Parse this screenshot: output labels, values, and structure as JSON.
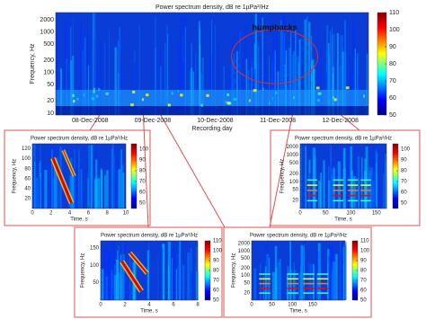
{
  "chart_data": [
    {
      "type": "heatmap",
      "title": "Power spectrum density, dB re 1µPa²/Hz",
      "xlabel": "Recording day",
      "ylabel": "Frequency, Hz",
      "categories": [
        "08-Dec-2008",
        "09-Dec-2008",
        "10-Dec-2008",
        "11-Dec-2008",
        "12-Dec-2008"
      ],
      "ylim": [
        9,
        3000
      ],
      "yticks": [
        10,
        20,
        50,
        100,
        200,
        500,
        1000,
        2000
      ],
      "log_y": true,
      "clim": [
        50,
        110
      ],
      "cticks": [
        50,
        60,
        70,
        80,
        90,
        100,
        110
      ],
      "annotation": "humpbacks"
    },
    {
      "type": "heatmap",
      "title": "Power spectrum density, dB re 1µPa²/Hz",
      "xlabel": "Time, s",
      "ylabel": "Frequency, Hz",
      "xlim": [
        0,
        10
      ],
      "xticks": [
        0,
        2,
        4,
        6,
        8,
        10
      ],
      "ylim": [
        0,
        130
      ],
      "yticks": [
        20,
        40,
        60,
        80,
        100,
        120
      ],
      "log_y": false,
      "clim": [
        45,
        105
      ],
      "cticks": [
        50,
        60,
        70,
        80,
        90,
        100
      ]
    },
    {
      "type": "heatmap",
      "title": "Power spectrum density, dB re 1µPa²/Hz",
      "xlabel": "Time, s",
      "ylabel": "Frequency, Hz",
      "xlim": [
        0,
        170
      ],
      "xticks": [
        0,
        50,
        100,
        150
      ],
      "ylim": [
        10,
        2600
      ],
      "yticks": [
        20,
        50,
        100,
        200,
        500,
        1000,
        2000
      ],
      "log_y": true,
      "clim": [
        45,
        105
      ],
      "cticks": [
        50,
        60,
        70,
        80,
        90,
        100
      ]
    },
    {
      "type": "heatmap",
      "title": "Power spectrum density, dB re 1µPa²/Hz",
      "xlabel": "Time, s",
      "ylabel": "Frequency, Hz",
      "xlim": [
        0,
        8
      ],
      "xticks": [
        0,
        2,
        4,
        6,
        8
      ],
      "ylim": [
        0,
        170
      ],
      "yticks": [
        50,
        100,
        150
      ],
      "log_y": false,
      "clim": [
        50,
        110
      ],
      "cticks": [
        50,
        60,
        70,
        80,
        90,
        100,
        110
      ]
    },
    {
      "type": "heatmap",
      "title": "Power spectrum density, dB re 1µPa²/Hz",
      "xlabel": "Time, s",
      "ylabel": "Frequency, Hz",
      "xlim": [
        0,
        230
      ],
      "xticks": [
        0,
        50,
        100,
        150
      ],
      "ylim": [
        10,
        2600
      ],
      "yticks": [
        20,
        50,
        100,
        200,
        500,
        1000,
        2000
      ],
      "log_y": true,
      "clim": [
        50,
        110
      ],
      "cticks": [
        50,
        60,
        70,
        80,
        90,
        100,
        110
      ]
    }
  ]
}
